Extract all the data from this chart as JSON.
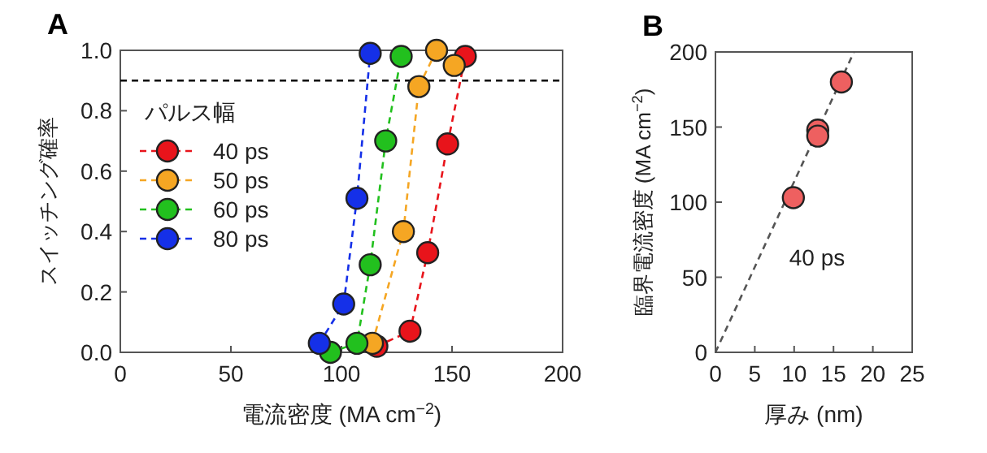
{
  "chart_data": [
    {
      "type": "line",
      "title": "A",
      "xlabel": "電流密度 (MA cm$^{−2}$)",
      "ylabel": "スイッチング確率",
      "legend_title": "パルス幅",
      "legend": "top left",
      "grid": false,
      "marker": "circle",
      "line_style": "dashed",
      "xlim": [
        0,
        200
      ],
      "xticks": [
        0,
        50,
        100,
        150,
        200
      ],
      "ylim": [
        0,
        1.0
      ],
      "yticks": [
        {
          "value": 0,
          "label": "0.0"
        },
        {
          "value": 0.2,
          "label": "0.2"
        },
        {
          "value": 0.4,
          "label": "0.4"
        },
        {
          "value": 0.6,
          "label": "0.6"
        },
        {
          "value": 0.8,
          "label": "0.8"
        },
        {
          "value": 1.0,
          "label": "1.0"
        }
      ],
      "ref_lines": [
        {
          "axis": "y",
          "value": 0.9,
          "color": "#000000",
          "line_style": "dashed"
        }
      ],
      "series": [
        {
          "name": "40 ps",
          "color": "#e8141b",
          "x": [
            116,
            131,
            139,
            148,
            156
          ],
          "values": [
            0.02,
            0.07,
            0.33,
            0.69,
            0.98
          ]
        },
        {
          "name": "50 ps",
          "color": "#f5a623",
          "x": [
            114,
            128,
            135,
            143,
            151
          ],
          "values": [
            0.03,
            0.4,
            0.88,
            1.0,
            0.95
          ]
        },
        {
          "name": "60 ps",
          "color": "#22c01e",
          "x": [
            95,
            107,
            113,
            120,
            127
          ],
          "values": [
            0.0,
            0.03,
            0.29,
            0.7,
            0.98
          ]
        },
        {
          "name": "80 ps",
          "color": "#1530e8",
          "x": [
            90,
            101,
            107,
            113
          ],
          "values": [
            0.03,
            0.16,
            0.51,
            0.99
          ]
        }
      ]
    },
    {
      "type": "scatter",
      "title": "B",
      "xlabel": "厚み (nm)",
      "ylabel": "臨界電流密度 (MA cm$^{−2}$)",
      "grid": false,
      "legend": false,
      "xlim": [
        0,
        25
      ],
      "xticks": [
        0,
        5,
        10,
        15,
        20,
        25
      ],
      "ylim": [
        0,
        200
      ],
      "yticks": [
        0,
        50,
        100,
        150,
        200
      ],
      "annotations": [
        "40 ps"
      ],
      "series": [
        {
          "type": "line",
          "color": "#555555",
          "line_style": "dashed",
          "marker": "none",
          "x": [
            0,
            17.6
          ],
          "values": [
            0,
            200
          ]
        },
        {
          "color": "#ee6060",
          "marker": "circle",
          "x": [
            9.9,
            13.0,
            13.0,
            16.0
          ],
          "values": [
            103,
            148,
            144,
            180
          ]
        }
      ]
    }
  ]
}
